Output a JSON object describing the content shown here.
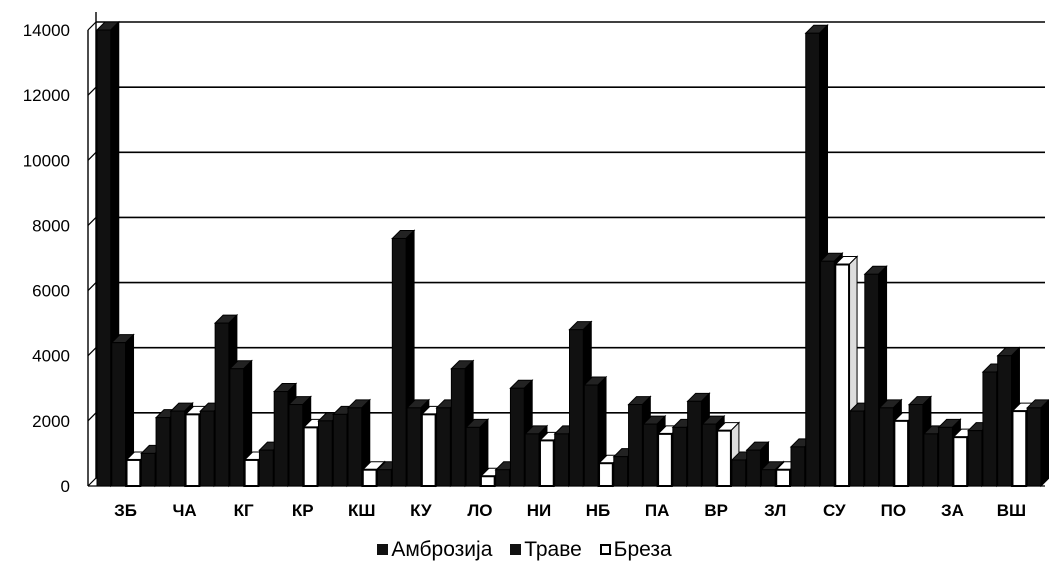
{
  "chart_data": {
    "type": "bar",
    "categories": [
      "ЗБ",
      "ЧА",
      "КГ",
      "КР",
      "КШ",
      "КУ",
      "ЛО",
      "НИ",
      "НБ",
      "ПА",
      "ВР",
      "ЗЛ",
      "СУ",
      "ПО",
      "ЗА",
      "ВШ"
    ],
    "series": [
      {
        "name": "Амброзија",
        "values": [
          14000,
          2100,
          5000,
          2900,
          2200,
          7600,
          3600,
          3000,
          4800,
          2500,
          2600,
          1100,
          13900,
          6500,
          1600,
          3500
        ]
      },
      {
        "name": "Траве",
        "values": [
          4400,
          2300,
          3600,
          2500,
          2400,
          2400,
          1800,
          1600,
          3100,
          1900,
          1900,
          500,
          6900,
          2400,
          1800,
          4000
        ]
      },
      {
        "name": "Бреза",
        "values": [
          800,
          2200,
          800,
          1800,
          500,
          2200,
          300,
          1400,
          700,
          1600,
          1700,
          500,
          6800,
          2000,
          1500,
          2300
        ]
      },
      {
        "name": "",
        "values": [
          1000,
          2300,
          1100,
          2000,
          500,
          2400,
          500,
          1600,
          900,
          1800,
          800,
          1200,
          2300,
          2500,
          1700,
          2400
        ]
      }
    ],
    "ylim": [
      0,
      14000
    ],
    "yticks": [
      0,
      2000,
      4000,
      6000,
      8000,
      10000,
      12000,
      14000
    ],
    "grid": true,
    "legend_position": "bottom",
    "colors": [
      "#111111",
      "#111111",
      "#ffffff",
      "#111111"
    ]
  },
  "legend": {
    "items": [
      {
        "label": "Амброзија"
      },
      {
        "label": "Траве"
      },
      {
        "label": "Бреза"
      }
    ]
  }
}
